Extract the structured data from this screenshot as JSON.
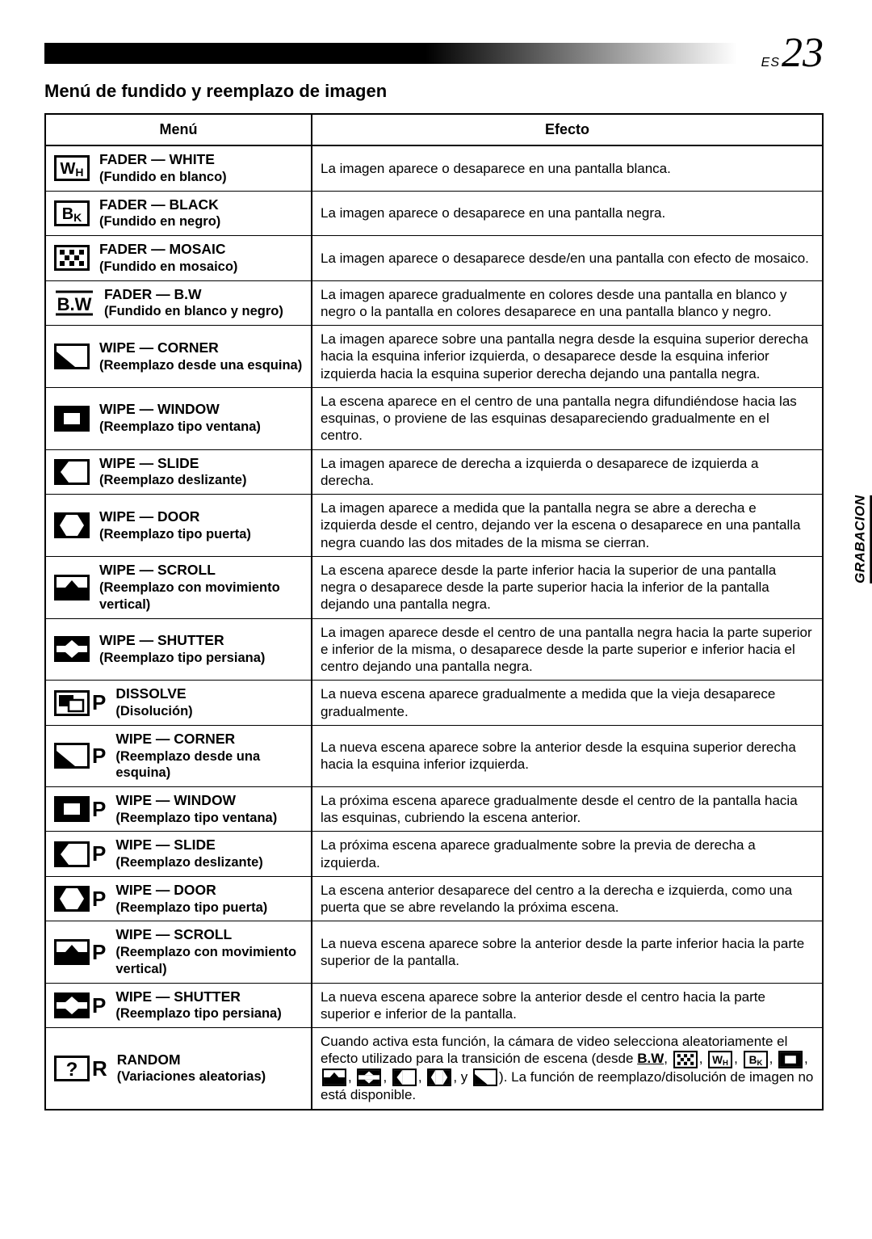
{
  "page_lang": "ES",
  "page_number": "23",
  "section_title": "Menú de fundido y reemplazo de imagen",
  "side_tab": "GRABACION",
  "headers": {
    "menu": "Menú",
    "effect": "Efecto"
  },
  "colors": {
    "ink": "#000000",
    "bg": "#ffffff"
  },
  "rows": [
    {
      "icon": "wh",
      "title": "FADER — WHITE",
      "sub": "(Fundido en blanco)",
      "effect": "La imagen aparece o desaparece en una pantalla blanca."
    },
    {
      "icon": "bk",
      "title": "FADER — BLACK",
      "sub": "(Fundido en negro)",
      "effect": "La imagen aparece o desaparece en una pantalla negra."
    },
    {
      "icon": "mosaic",
      "title": "FADER — MOSAIC",
      "sub": "(Fundido en mosaico)",
      "effect": "La imagen aparece o desaparece desde/en una pantalla con efecto de mosaico."
    },
    {
      "icon": "bw",
      "title": "FADER — B.W",
      "sub": "(Fundido en blanco y negro)",
      "effect": "La imagen aparece gradualmente en colores desde una pantalla en blanco y negro o la pantalla en colores desaparece en una pantalla blanco y negro."
    },
    {
      "icon": "corner",
      "title": "WIPE — CORNER",
      "sub": "(Reemplazo desde una esquina)",
      "effect": "La imagen aparece sobre una pantalla negra desde la esquina superior derecha hacia la esquina inferior izquierda, o desaparece desde la esquina inferior izquierda hacia la esquina superior derecha dejando una pantalla negra."
    },
    {
      "icon": "window",
      "title": "WIPE — WINDOW",
      "sub": "(Reemplazo tipo ventana)",
      "effect": "La escena aparece en el centro de una pantalla negra difundiéndose hacia las esquinas, o proviene de las esquinas desapareciendo gradualmente en el centro."
    },
    {
      "icon": "slide",
      "title": "WIPE — SLIDE",
      "sub": "(Reemplazo deslizante)",
      "effect": "La imagen aparece de derecha a izquierda o desaparece de izquierda a derecha."
    },
    {
      "icon": "door",
      "title": "WIPE — DOOR",
      "sub": "(Reemplazo tipo puerta)",
      "effect": "La imagen aparece a medida que la pantalla negra se abre a derecha e izquierda desde el centro, dejando ver la escena o desaparece en una pantalla negra cuando las dos mitades de la misma se cierran."
    },
    {
      "icon": "scroll",
      "title": "WIPE — SCROLL",
      "sub": "(Reemplazo con movimiento vertical)",
      "effect": "La escena aparece desde la parte inferior hacia la superior de una pantalla negra o desaparece desde la parte superior hacia la inferior de la pantalla dejando una pantalla negra."
    },
    {
      "icon": "shutter",
      "title": "WIPE — SHUTTER",
      "sub": "(Reemplazo tipo persiana)",
      "effect": "La imagen aparece desde el centro de una pantalla negra hacia la parte superior e inferior de la misma, o desaparece desde la parte superior e inferior hacia el centro dejando una pantalla negra."
    },
    {
      "icon": "dissolve",
      "badge": "P",
      "title": "DISSOLVE",
      "sub": "(Disolución)",
      "effect": "La nueva escena aparece gradualmente a medida que la vieja desaparece gradualmente."
    },
    {
      "icon": "corner",
      "badge": "P",
      "title": "WIPE — CORNER",
      "sub": "(Reemplazo desde una esquina)",
      "effect": "La nueva escena aparece sobre la anterior desde la esquina superior derecha hacia la esquina inferior izquierda."
    },
    {
      "icon": "window",
      "badge": "P",
      "title": "WIPE — WINDOW",
      "sub": "(Reemplazo tipo ventana)",
      "effect": "La próxima escena aparece gradualmente desde el centro de la pantalla hacia las esquinas, cubriendo la escena anterior."
    },
    {
      "icon": "slide",
      "badge": "P",
      "title": "WIPE — SLIDE",
      "sub": "(Reemplazo deslizante)",
      "effect": "La próxima escena aparece gradualmente sobre la previa de derecha a izquierda."
    },
    {
      "icon": "door",
      "badge": "P",
      "title": "WIPE — DOOR",
      "sub": "(Reemplazo tipo puerta)",
      "effect": "La escena anterior desaparece del centro a la derecha e izquierda, como una puerta que se abre revelando la próxima escena."
    },
    {
      "icon": "scroll",
      "badge": "P",
      "title": "WIPE — SCROLL",
      "sub": "(Reemplazo con movimiento vertical)",
      "effect": "La nueva escena aparece sobre la anterior desde la parte inferior hacia la parte superior de la pantalla."
    },
    {
      "icon": "shutter",
      "badge": "P",
      "title": "WIPE — SHUTTER",
      "sub": "(Reemplazo tipo persiana)",
      "effect": "La nueva escena aparece sobre la anterior desde el centro hacia la parte superior e inferior de la pantalla."
    },
    {
      "icon": "random",
      "badge": "R",
      "title": "RANDOM",
      "sub": "(Variaciones aleatorias)",
      "effect_html": "Cuando activa esta función, la cámara de video selecciona aleatoriamente el efecto utilizado para la transición de escena (desde {bw}, {mosaic}, {wh}, {bk}, {window}, {scroll}, {shutter}, {slide}, {door}, y {corner}). La función de reemplazo/disolución de imagen no está disponible."
    }
  ]
}
